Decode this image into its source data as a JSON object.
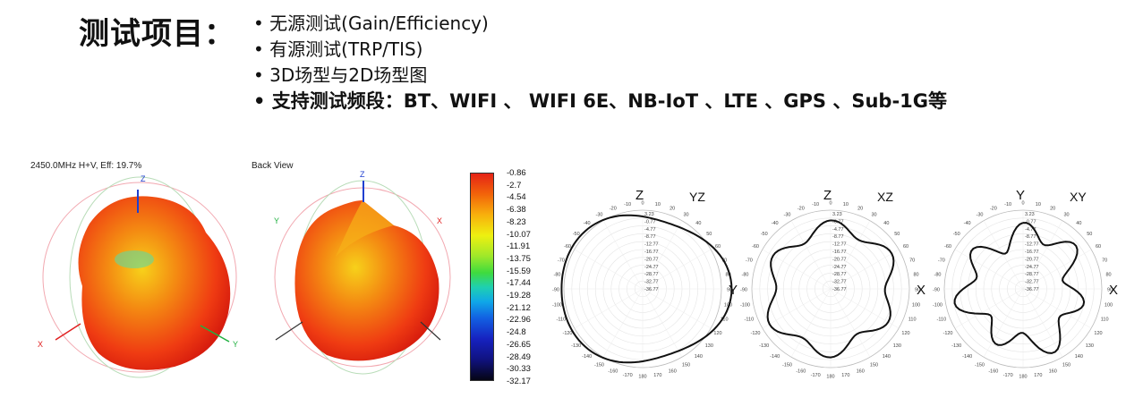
{
  "header": {
    "title": "测试项目：",
    "bullets": [
      "无源测试(Gain/Efficiency)",
      "有源测试(TRP/TIS)",
      "3D场型与2D场型图",
      "支持测试频段：BT、WIFI 、 WIFI 6E、NB-IoT 、LTE 、GPS 、Sub-1G等"
    ]
  },
  "views": {
    "front_caption": "2450.0MHz H+V, Eff: 19.7%",
    "back_caption": "Back View",
    "front_axes": {
      "z": "Z",
      "x": "X",
      "y": "Y"
    },
    "back_axes": {
      "z": "Z",
      "x": "X",
      "y": "Y"
    }
  },
  "color_scale": {
    "labels": [
      "-0.86",
      "-2.7",
      "-4.54",
      "-6.38",
      "-8.23",
      "-10.07",
      "-11.91",
      "-13.75",
      "-15.59",
      "-17.44",
      "-19.28",
      "-21.12",
      "-22.96",
      "-24.8",
      "-26.65",
      "-28.49",
      "-30.33",
      "-32.17"
    ]
  },
  "polar": {
    "angle_labels": [
      "-170",
      "-160",
      "-150",
      "-140",
      "-130",
      "-120",
      "-110",
      "-100",
      "-90",
      "-80",
      "-70",
      "-60",
      "-50",
      "-40",
      "-30",
      "-20",
      "-10",
      "0",
      "10",
      "20",
      "30",
      "40",
      "50",
      "60",
      "70",
      "80",
      "90",
      "100",
      "110",
      "120",
      "130",
      "140",
      "150",
      "160",
      "170",
      "180"
    ],
    "ring_labels": [
      "3.23",
      "-0.77",
      "-4.77",
      "-8.77",
      "-12.77",
      "-16.77",
      "-20.77",
      "-24.77",
      "-28.77",
      "-32.77",
      "-36.77"
    ],
    "plots": [
      {
        "name": "YZ",
        "top_axis": "Z",
        "side_axis": "Y",
        "plane": "YZ"
      },
      {
        "name": "XZ",
        "top_axis": "Z",
        "side_axis": "X",
        "plane": "XZ"
      },
      {
        "name": "XY",
        "top_axis": "Y",
        "side_axis": "X",
        "plane": "XY"
      }
    ]
  }
}
